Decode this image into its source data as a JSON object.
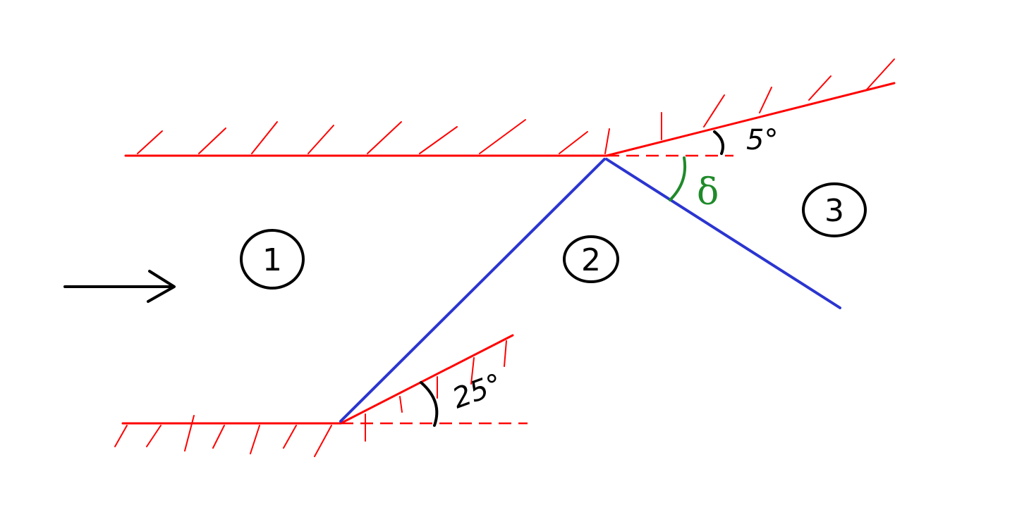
{
  "regions": [
    {
      "id": "region-1",
      "label": "1"
    },
    {
      "id": "region-2",
      "label": "2"
    },
    {
      "id": "region-3",
      "label": "3"
    }
  ],
  "angles": {
    "lower_wedge": "25°",
    "upper_wedge": "5°",
    "shock_angle": "δ"
  },
  "colors": {
    "wall": "#ff0000",
    "shock": "#2b35d0",
    "annotation": "#000000",
    "delta": "#1f8a2a"
  },
  "flow_direction": "right"
}
